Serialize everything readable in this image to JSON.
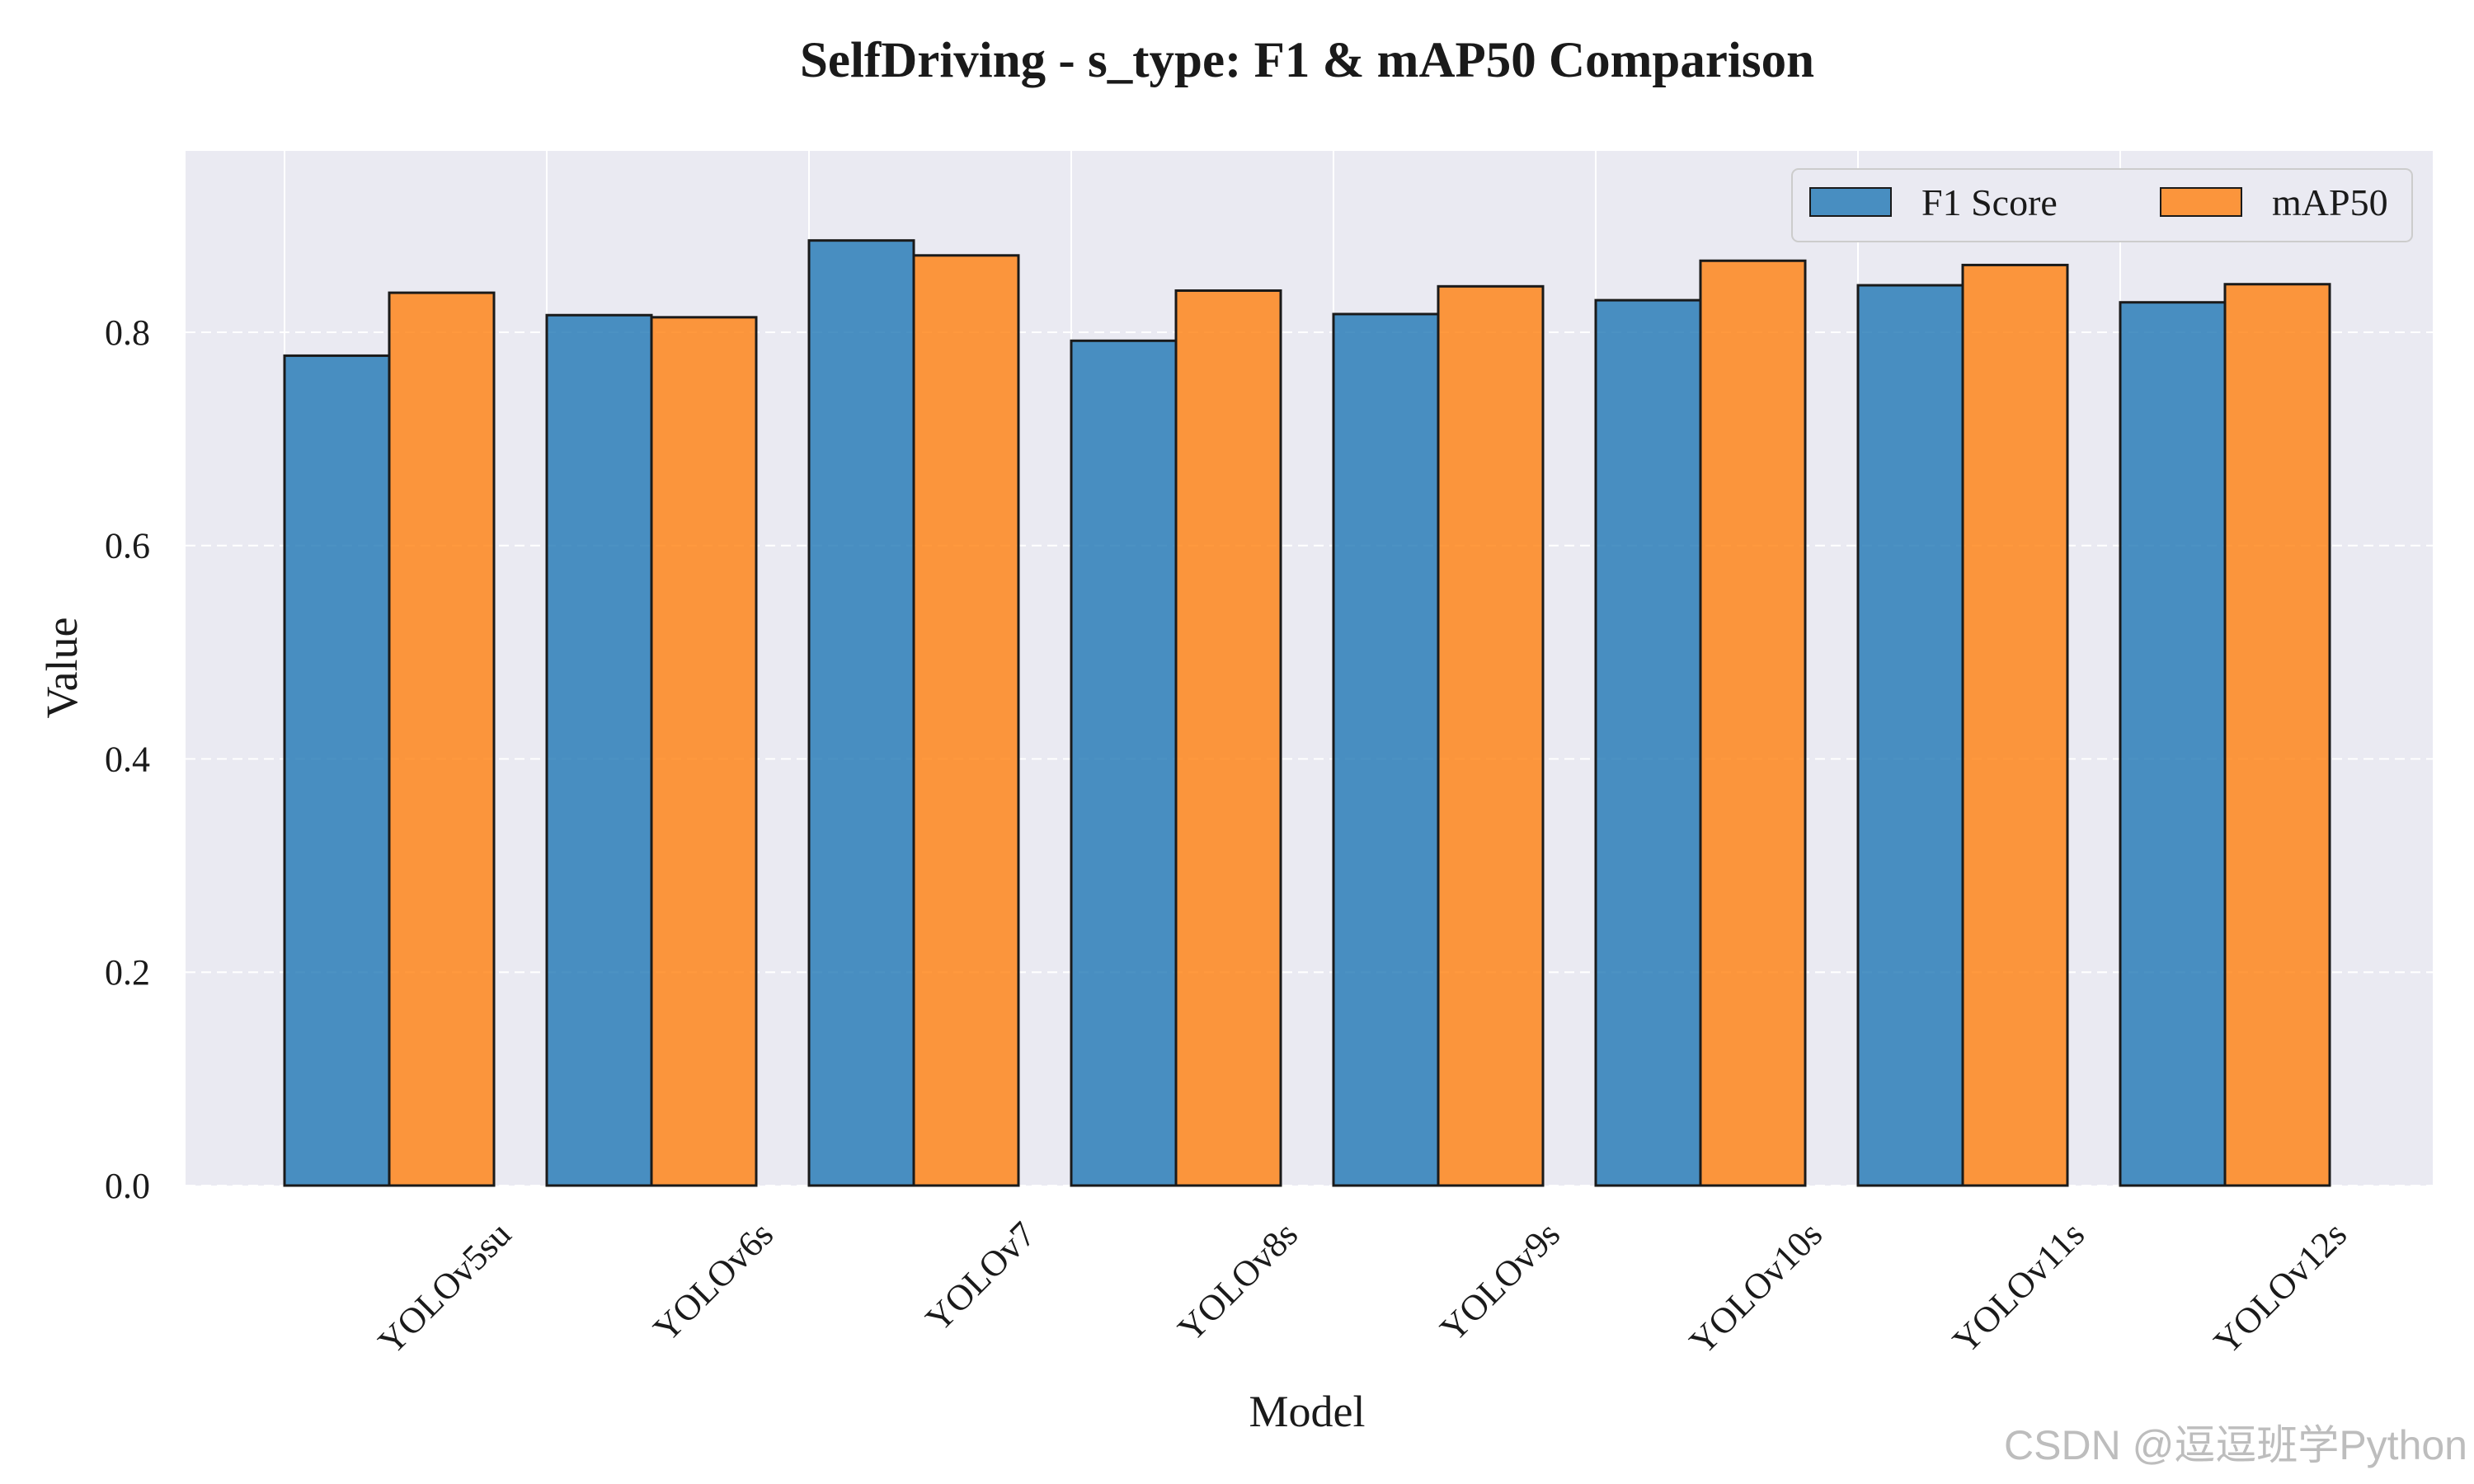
{
  "watermark": "CSDN @逗逗班学Python",
  "chart_data": {
    "type": "bar",
    "title": "SelfDriving - s_type: F1 & mAP50 Comparison",
    "xlabel": "Model",
    "ylabel": "Value",
    "categories": [
      "YOLOv5su",
      "YOLOv6s",
      "YOLOv7",
      "YOLOv8s",
      "YOLOv9s",
      "YOLOv10s",
      "YOLOv11s",
      "YOLOv12s"
    ],
    "series": [
      {
        "name": "F1 Score",
        "color": "#1f77b4",
        "values": [
          0.778,
          0.816,
          0.886,
          0.792,
          0.817,
          0.83,
          0.844,
          0.828
        ]
      },
      {
        "name": "mAP50",
        "color": "#ff7f0e",
        "values": [
          0.837,
          0.814,
          0.872,
          0.839,
          0.843,
          0.867,
          0.863,
          0.845
        ]
      }
    ],
    "ylim": [
      0,
      0.97
    ],
    "yticks": [
      "0.0",
      "0.2",
      "0.4",
      "0.6",
      "0.8"
    ],
    "grid": true,
    "legend_position": "top-right",
    "plot_background": "#eaeaf2"
  }
}
